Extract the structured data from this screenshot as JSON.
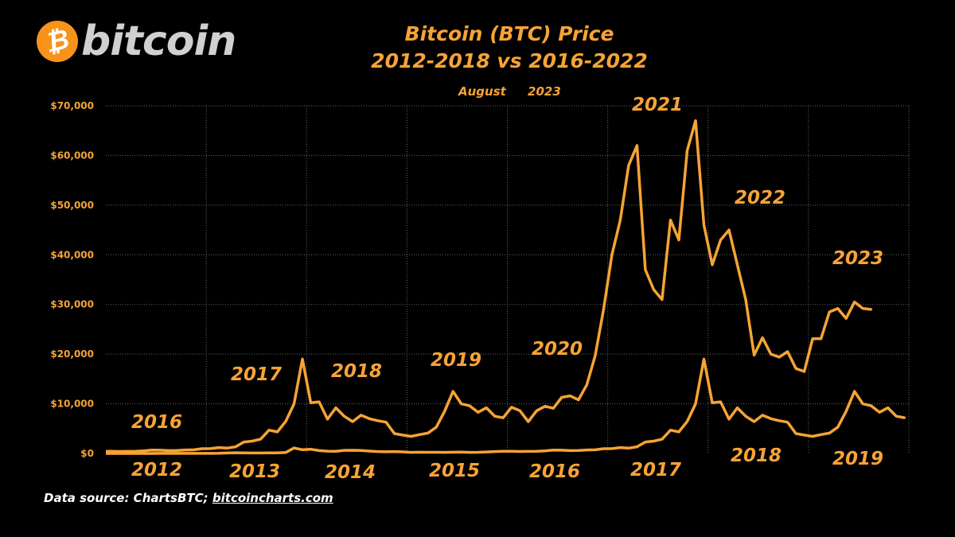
{
  "logo": {
    "text": "bitcoin",
    "symbol": "₿"
  },
  "title_line1": "Bitcoin (BTC) Price",
  "title_line2": "2012-2018 vs 2016-2022",
  "subtitle": "August 2023",
  "source": {
    "prefix": "Data source: ChartsBTC; ",
    "link": "bitcoincharts.com"
  },
  "colors": {
    "line": "#f7a335",
    "brand": "#f7931a",
    "background": "#000000",
    "grid": "#666666"
  },
  "chart_data": {
    "type": "line",
    "ylim": [
      0,
      70000
    ],
    "yticks": [
      "$0",
      "$10,000",
      "$20,000",
      "$30,000",
      "$40,000",
      "$50,000",
      "$60,000",
      "$70,000"
    ],
    "grid": true,
    "upper_year_labels": [
      "2016",
      "2017",
      "2018",
      "2019",
      "2020",
      "2021",
      "2022",
      "2023"
    ],
    "lower_year_labels": [
      "2012",
      "2013",
      "2014",
      "2015",
      "2016",
      "2017",
      "2018",
      "2019"
    ],
    "series": [
      {
        "period": "2016-2023",
        "start": "2016-01",
        "values": [
          430,
          400,
          415,
          450,
          530,
          670,
          650,
          575,
          610,
          700,
          740,
          960,
          970,
          1190,
          1080,
          1350,
          2300,
          2480,
          2875,
          4700,
          4340,
          6450,
          10000,
          19000,
          10200,
          10400,
          6900,
          9200,
          7500,
          6400,
          7700,
          7000,
          6600,
          6300,
          4000,
          3700,
          3450,
          3800,
          4100,
          5300,
          8500,
          12500,
          10000,
          9600,
          8300,
          9200,
          7500,
          7200,
          9300,
          8600,
          6400,
          8600,
          9500,
          9100,
          11300,
          11600,
          10800,
          13800,
          19700,
          29000,
          40000,
          47000,
          58000,
          62000,
          37000,
          33000,
          31000,
          47000,
          43000,
          61000,
          67000,
          46000,
          38000,
          43000,
          45000,
          38000,
          31000,
          19800,
          23300,
          20000,
          19400,
          20500,
          17100,
          16500,
          23100,
          23100,
          28500,
          29200,
          27200,
          30500,
          29200,
          29000
        ]
      },
      {
        "period": "2012-2019",
        "start": "2012-01",
        "values": [
          6,
          5,
          5,
          5,
          5,
          6,
          9,
          10,
          12,
          11,
          12,
          13,
          20,
          33,
          90,
          140,
          130,
          95,
          100,
          130,
          130,
          200,
          1100,
          750,
          850,
          580,
          460,
          450,
          630,
          640,
          590,
          480,
          390,
          340,
          380,
          320,
          220,
          250,
          245,
          235,
          230,
          260,
          285,
          230,
          235,
          310,
          380,
          430,
          430,
          400,
          415,
          450,
          530,
          670,
          650,
          575,
          610,
          700,
          740,
          960,
          970,
          1190,
          1080,
          1350,
          2300,
          2480,
          2875,
          4700,
          4340,
          6450,
          10000,
          19000,
          10200,
          10400,
          6900,
          9200,
          7500,
          6400,
          7700,
          7000,
          6600,
          6300,
          4000,
          3700,
          3450,
          3800,
          4100,
          5300,
          8500,
          12500,
          10000,
          9600,
          8300,
          9200,
          7500,
          7200
        ]
      }
    ]
  }
}
